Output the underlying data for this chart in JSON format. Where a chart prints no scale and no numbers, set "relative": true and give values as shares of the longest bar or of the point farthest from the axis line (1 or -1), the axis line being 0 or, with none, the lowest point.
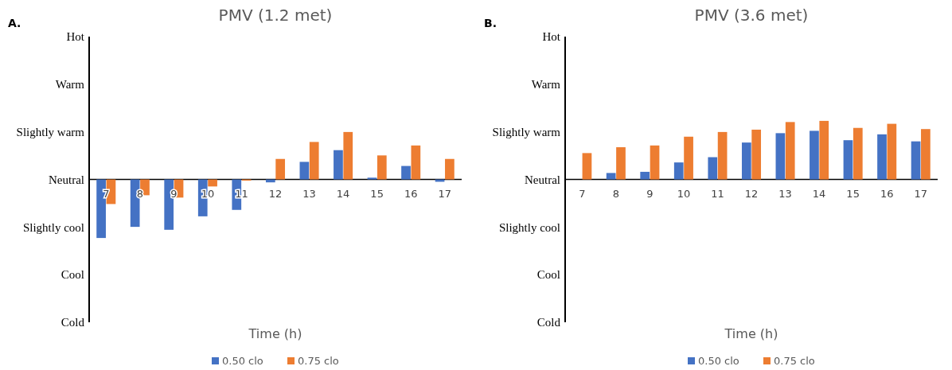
{
  "chart_data": [
    {
      "type": "bar",
      "title": "PMV (1.2 met)",
      "xlabel": "Time (h)",
      "annotations": [
        "A.",
        "Hot",
        "Warm",
        "Slightly warm",
        "Neutral",
        "Slightly cool",
        "Cool",
        "Cold"
      ],
      "categories": [
        "7",
        "8",
        "9",
        "10",
        "11",
        "12",
        "13",
        "14",
        "15",
        "16",
        "17"
      ],
      "relative": true,
      "series": [
        {
          "name": "0.50 clo",
          "color": "#4472c4",
          "values": [
            -1,
            -0.81,
            -0.86,
            -0.63,
            -0.52,
            -0.05,
            0.3,
            0.5,
            0.03,
            0.23,
            -0.04
          ]
        },
        {
          "name": "0.75 clo",
          "color": "#ed7d31",
          "values": [
            -0.42,
            -0.27,
            -0.31,
            -0.12,
            -0.02,
            0.35,
            0.64,
            0.81,
            0.41,
            0.58,
            0.35
          ]
        }
      ],
      "legend": "bottom"
    },
    {
      "type": "bar",
      "title": "PMV (3.6 met)",
      "xlabel": "Time (h)",
      "annotations": [
        "B.",
        "Hot",
        "Warm",
        "Slightly warm",
        "Neutral",
        "Slightly cool",
        "Cool",
        "Cold"
      ],
      "categories": [
        "7",
        "8",
        "9",
        "10",
        "11",
        "12",
        "13",
        "14",
        "15",
        "16",
        "17"
      ],
      "relative": true,
      "series": [
        {
          "name": "0.50 clo",
          "color": "#4472c4",
          "values": [
            0,
            0.11,
            0.13,
            0.29,
            0.38,
            0.63,
            0.79,
            0.83,
            0.67,
            0.77,
            0.65
          ]
        },
        {
          "name": "0.75 clo",
          "color": "#ed7d31",
          "values": [
            0.45,
            0.55,
            0.58,
            0.73,
            0.81,
            0.85,
            0.98,
            1,
            0.88,
            0.95,
            0.86
          ]
        }
      ],
      "legend": "bottom"
    }
  ]
}
